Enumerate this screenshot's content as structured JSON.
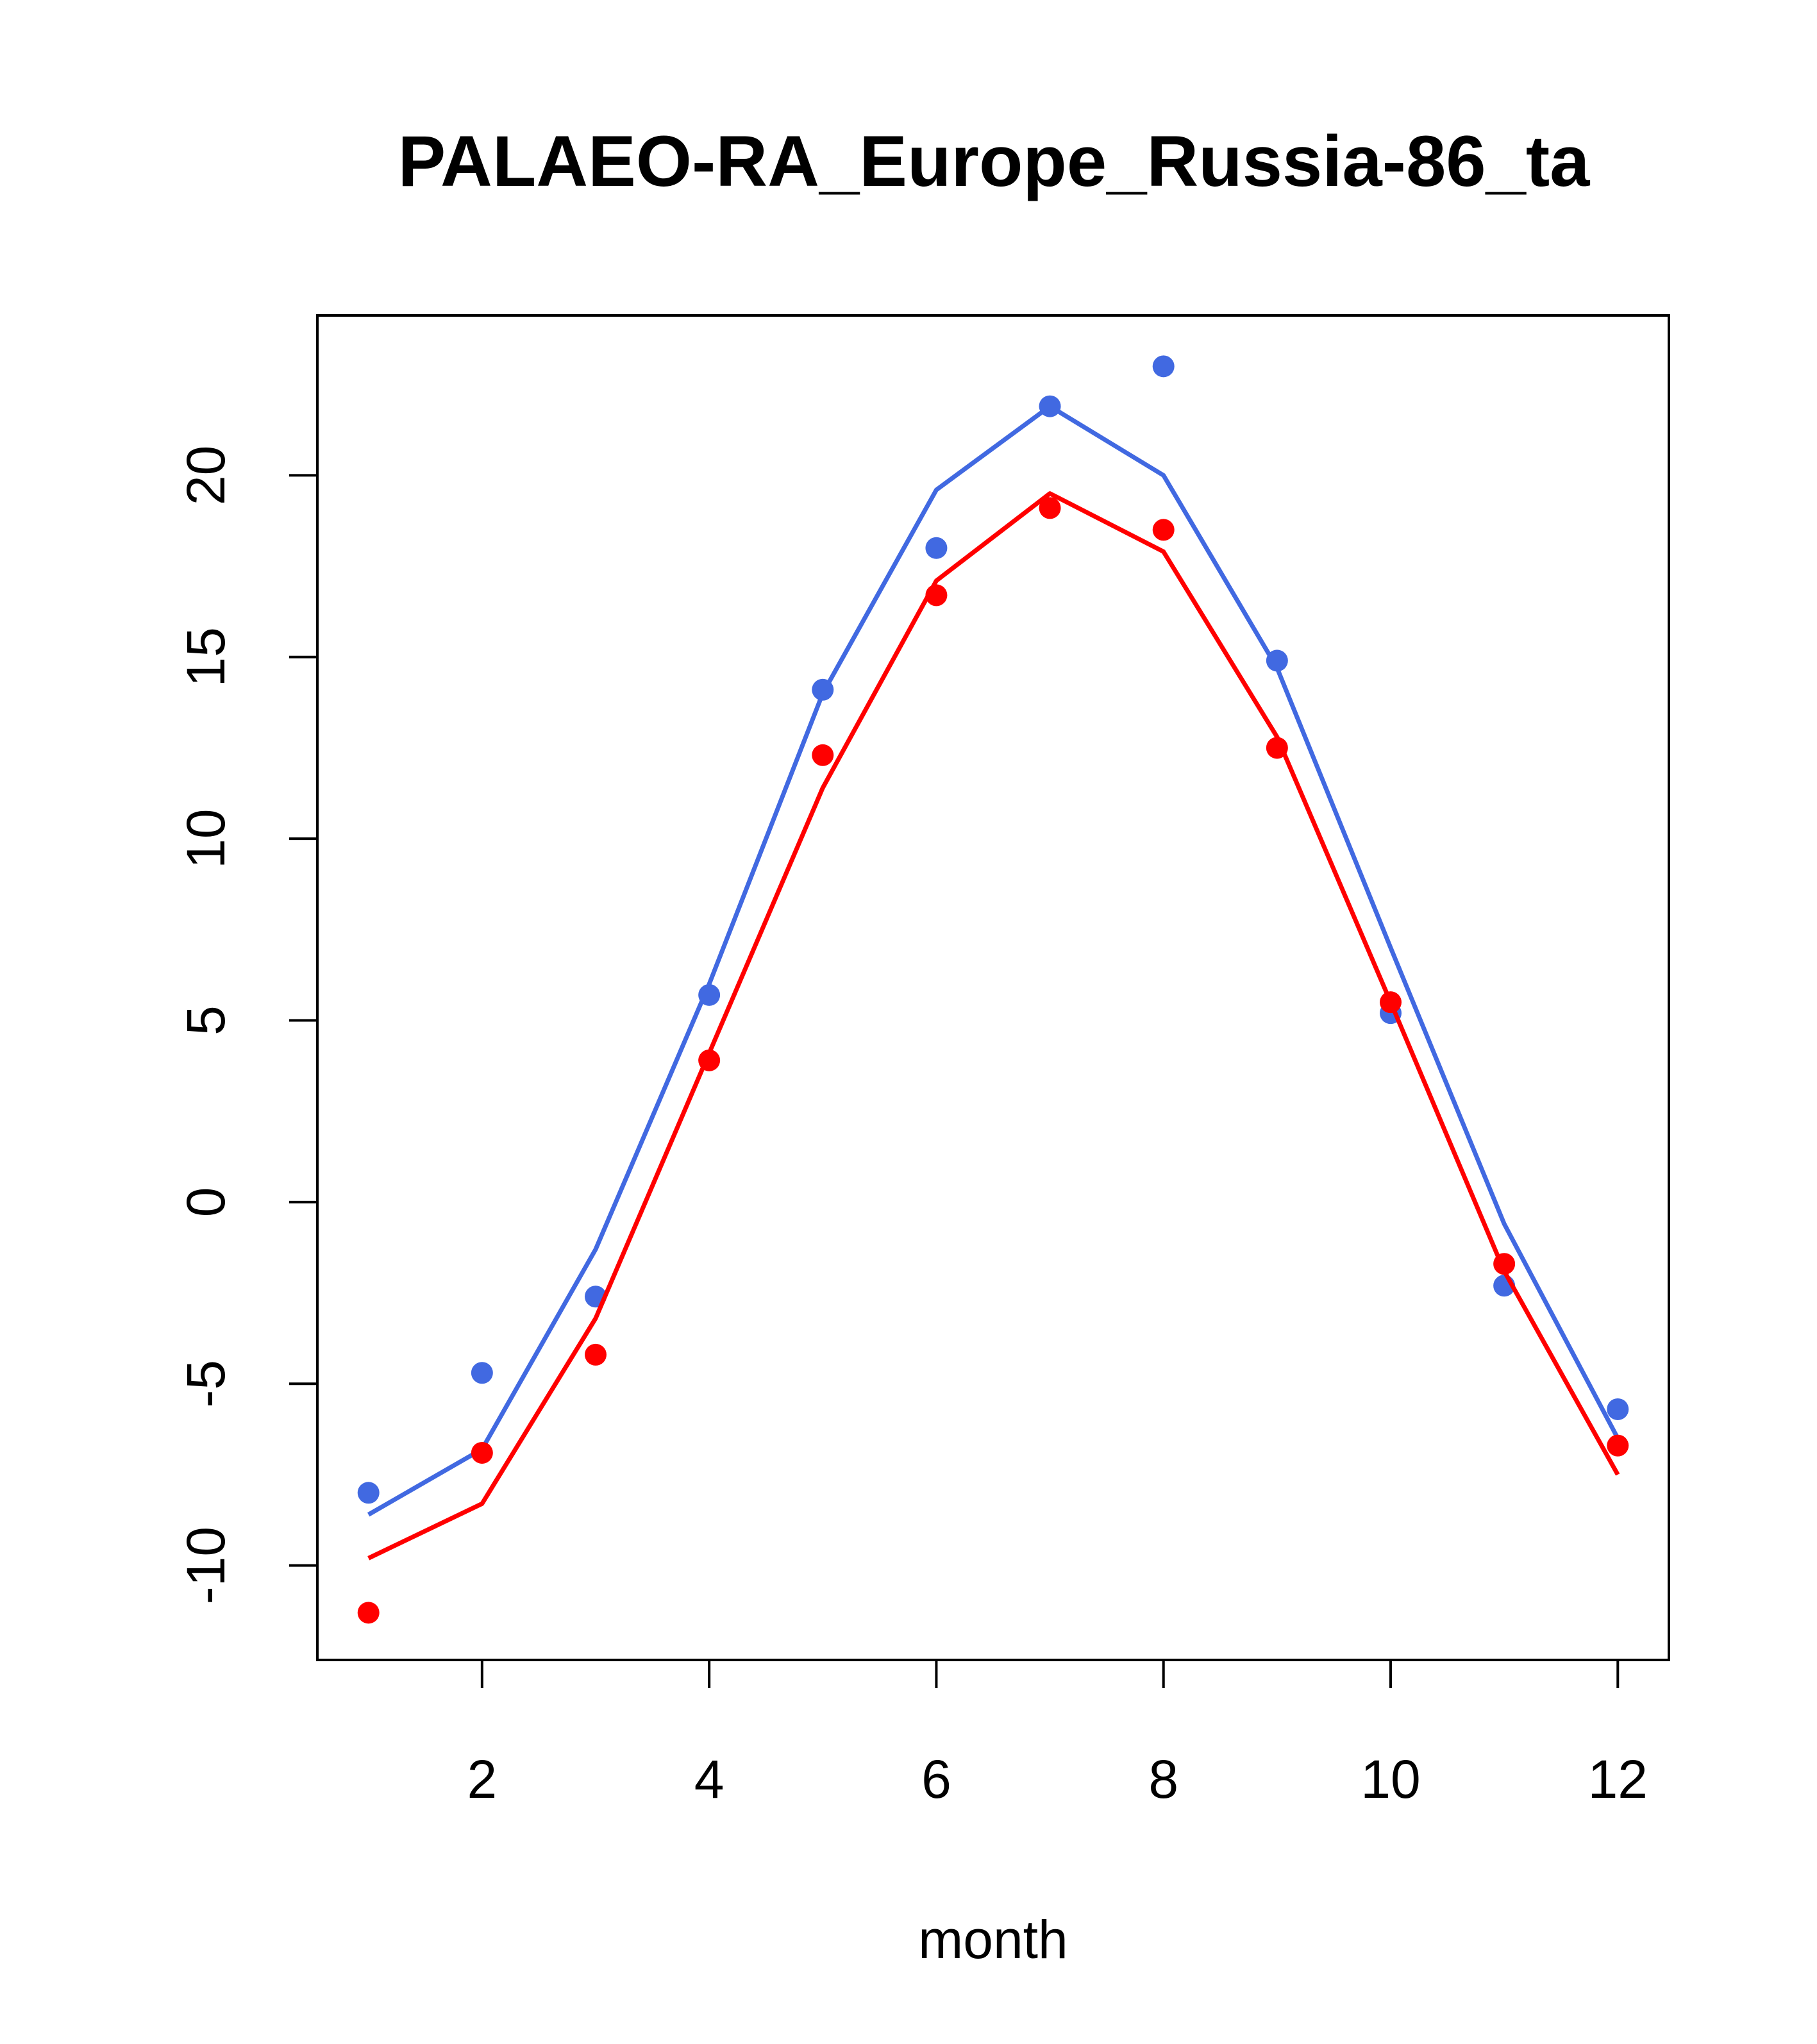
{
  "chart_data": {
    "type": "line",
    "title": "PALAEO-RA_Europe_Russia-86_ta",
    "xlabel": "month",
    "ylabel": "",
    "xlim": [
      0.55,
      12.45
    ],
    "ylim": [
      -12.6,
      24.4
    ],
    "x_ticks": [
      2,
      4,
      6,
      8,
      10,
      12
    ],
    "y_ticks": [
      -10,
      -5,
      0,
      5,
      10,
      15,
      20
    ],
    "grid": false,
    "legend": "none",
    "x": [
      1,
      2,
      3,
      4,
      5,
      6,
      7,
      8,
      9,
      10,
      11,
      12
    ],
    "series": [
      {
        "color": "#4169e1",
        "lines": [
          -8.6,
          -6.8,
          -1.3,
          6.0,
          14.0,
          19.6,
          21.9,
          20.0,
          14.7,
          7.0,
          -0.6,
          -6.5
        ],
        "points": [
          -8.0,
          -4.7,
          -2.6,
          5.7,
          14.1,
          18.0,
          21.9,
          23.0,
          14.9,
          5.2,
          -2.3,
          -5.7
        ]
      },
      {
        "color": "#ff0000",
        "lines": [
          -9.8,
          -8.3,
          -3.2,
          4.1,
          11.4,
          17.1,
          19.5,
          17.9,
          12.8,
          5.5,
          -1.9,
          -7.5
        ],
        "points": [
          -11.3,
          -6.9,
          -4.2,
          3.9,
          12.3,
          16.7,
          19.1,
          18.5,
          12.5,
          5.5,
          -1.7,
          -6.7
        ]
      }
    ]
  }
}
